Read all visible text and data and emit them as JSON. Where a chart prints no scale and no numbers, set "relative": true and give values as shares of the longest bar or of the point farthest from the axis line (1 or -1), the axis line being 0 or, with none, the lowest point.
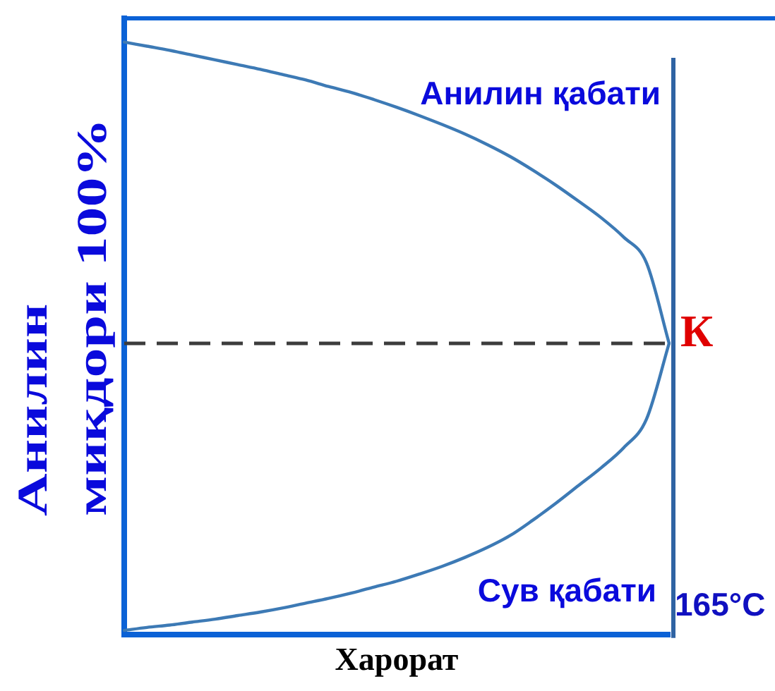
{
  "chart_data": {
    "type": "line",
    "relative": true,
    "xlabel": "Харорат",
    "ylabel": "Анилин\nмиқдори 100%",
    "categories": [
      null,
      null,
      null,
      null,
      null,
      null,
      null,
      null,
      null,
      null,
      null,
      null,
      null,
      null,
      null,
      null,
      null,
      null,
      null,
      null,
      null,
      null,
      null,
      null,
      null
    ],
    "series": [
      {
        "color": "#3d7ab5",
        "values": [
          1,
          0.993,
          0.986,
          0.978,
          0.97,
          0.962,
          0.954,
          0.945,
          0.936,
          0.925,
          0.915,
          0.903,
          0.89,
          0.876,
          0.861,
          0.845,
          0.827,
          0.807,
          0.784,
          0.759,
          0.732,
          0.704,
          0.671,
          0.628,
          0.492
        ]
      },
      {
        "color": "#3d7ab5",
        "values": [
          0.008,
          0.013,
          0.017,
          0.022,
          0.027,
          0.033,
          0.039,
          0.046,
          0.054,
          0.062,
          0.071,
          0.081,
          0.091,
          0.103,
          0.116,
          0.131,
          0.148,
          0.168,
          0.194,
          0.222,
          0.252,
          0.282,
          0.316,
          0.364,
          0.492
        ]
      }
    ],
    "ref_lines": [
      {
        "axis": "y",
        "value": 0.492,
        "color": "#3c3c3c",
        "line_style": "dashed"
      }
    ],
    "annotations": [
      "Анилин қабати",
      "К",
      "Сув қабати",
      "165°C"
    ]
  }
}
